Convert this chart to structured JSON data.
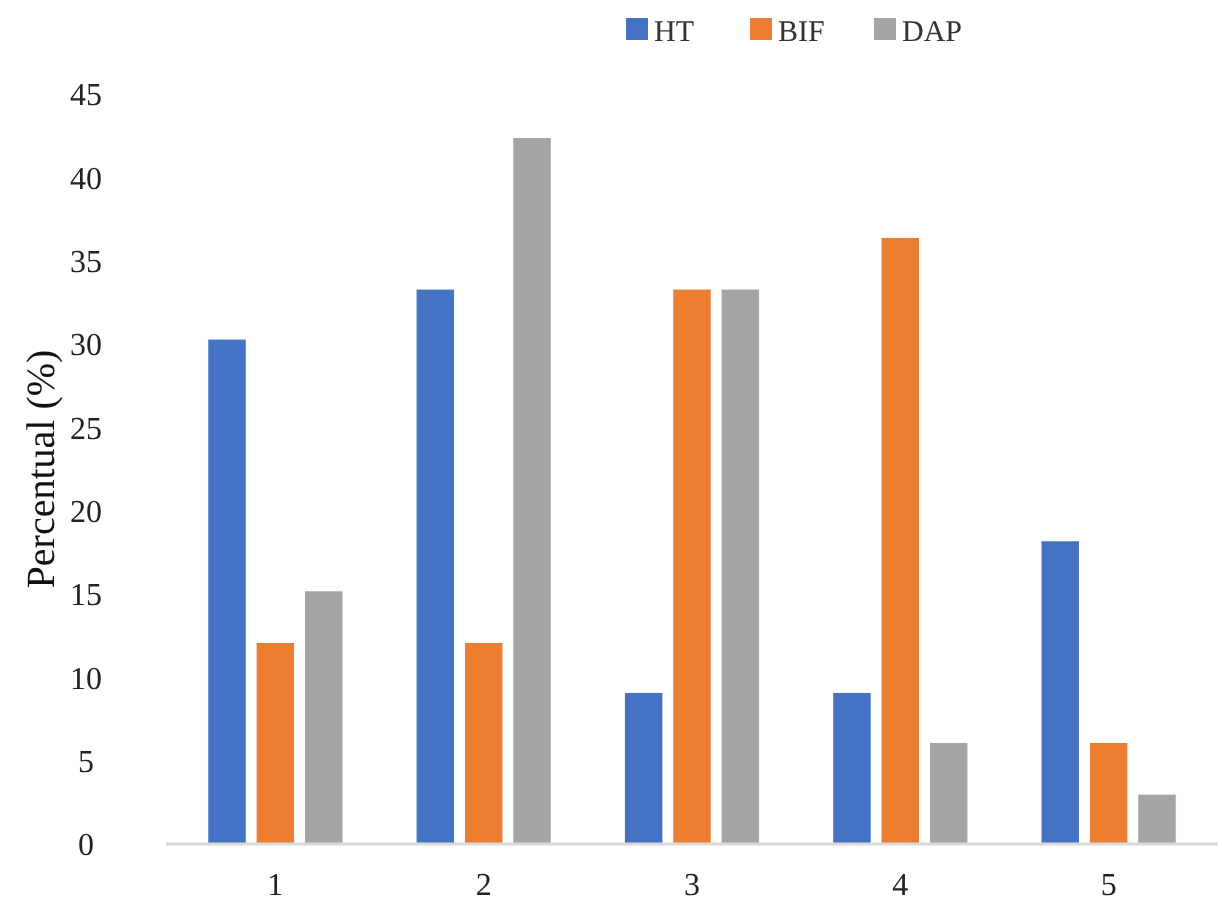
{
  "chart_data": {
    "type": "bar",
    "ylabel": "Percentual (%)",
    "categories": [
      "1",
      "2",
      "3",
      "4",
      "5"
    ],
    "series": [
      {
        "name": "HT",
        "color": "#4472c4",
        "values": [
          30.3,
          33.3,
          9.1,
          9.1,
          18.2
        ]
      },
      {
        "name": "BIF",
        "color": "#ed7d31",
        "values": [
          12.1,
          12.1,
          33.3,
          36.4,
          6.1
        ]
      },
      {
        "name": "DAP",
        "color": "#a5a5a5",
        "values": [
          15.2,
          42.4,
          33.3,
          6.1,
          3.0
        ]
      }
    ],
    "ylim": [
      0,
      45
    ],
    "yticks": [
      0,
      5,
      10,
      15,
      20,
      25,
      30,
      35,
      40,
      45
    ],
    "grid": false,
    "legend": "top"
  }
}
